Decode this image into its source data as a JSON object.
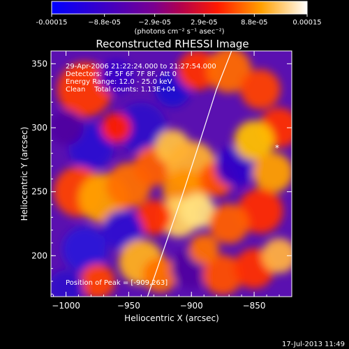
{
  "chart_data": {
    "type": "heatmap",
    "title": "Reconstructed RHESSI Image",
    "xlabel": "Heliocentric X (arcsec)",
    "ylabel": "Heliocentric Y (arcsec)",
    "xlim": [
      -1012,
      -820
    ],
    "ylim": [
      168,
      360
    ],
    "x_ticks": [
      -1000,
      -950,
      -900,
      -850
    ],
    "y_ticks": [
      200,
      250,
      300,
      350
    ],
    "colorbar": {
      "range": [
        -0.00015,
        0.00015
      ],
      "tick_values": [
        -0.00015,
        -8.8e-05,
        -2.9e-05,
        2.9e-05,
        8.8e-05,
        0.00015
      ],
      "tick_labels": [
        "-0.00015",
        "−8.8e-05",
        "−2.9e-05",
        "2.9e-05",
        "8.8e-05",
        "0.00015"
      ],
      "unit_label": "(photons cm⁻² s⁻¹ asec⁻²)"
    },
    "annotations": [
      "29-Apr-2006 21:22:24.000 to 21:27:54.000",
      "Detectors: 4F 5F 6F 7F 8F, Att 0",
      "Energy Range: 12.0 - 25.0 keV",
      "Clean    Total counts: 1.13E+04"
    ],
    "peak_text": "Position of Peak = [-909,263]",
    "peak": [
      -909,
      263
    ],
    "limb_curve": [
      [
        -935,
        168
      ],
      [
        -922,
        205
      ],
      [
        -908,
        245
      ],
      [
        -893,
        290
      ],
      [
        -880,
        330
      ],
      [
        -868,
        360
      ]
    ],
    "grid": false
  },
  "footer": {
    "date": "17-Jul-2013 11:49"
  }
}
